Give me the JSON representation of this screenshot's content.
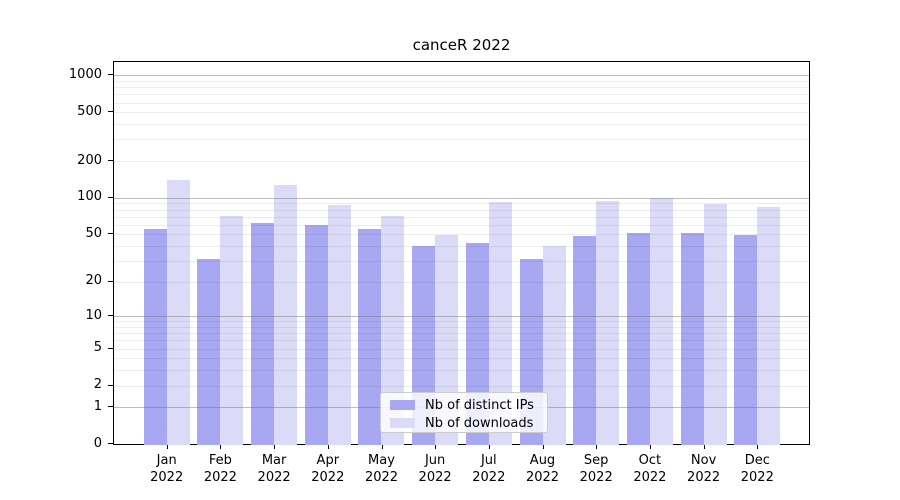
{
  "chart_data": {
    "type": "bar",
    "title": "canceR 2022",
    "categories": [
      "Jan 2022",
      "Feb 2022",
      "Mar 2022",
      "Apr 2022",
      "May 2022",
      "Jun 2022",
      "Jul 2022",
      "Aug 2022",
      "Sep 2022",
      "Oct 2022",
      "Nov 2022",
      "Dec 2022"
    ],
    "series": [
      {
        "name": "Nb of distinct IPs",
        "color": "#a8a8f2",
        "values": [
          55,
          31,
          62,
          60,
          55,
          40,
          42,
          31,
          48,
          51,
          51,
          49
        ]
      },
      {
        "name": "Nb of downloads",
        "color": "#dbdbf8",
        "values": [
          140,
          71,
          127,
          87,
          71,
          49,
          92,
          40,
          95,
          100,
          89,
          84
        ]
      }
    ],
    "xlabel": "",
    "ylabel": "",
    "y_ticks": [
      0,
      1,
      2,
      5,
      10,
      20,
      50,
      100,
      200,
      500,
      1000
    ],
    "y_scale": "log10(1+x)",
    "ylim": [
      0,
      1280
    ],
    "grid": true,
    "legend_position": "inside-bottom-center"
  }
}
